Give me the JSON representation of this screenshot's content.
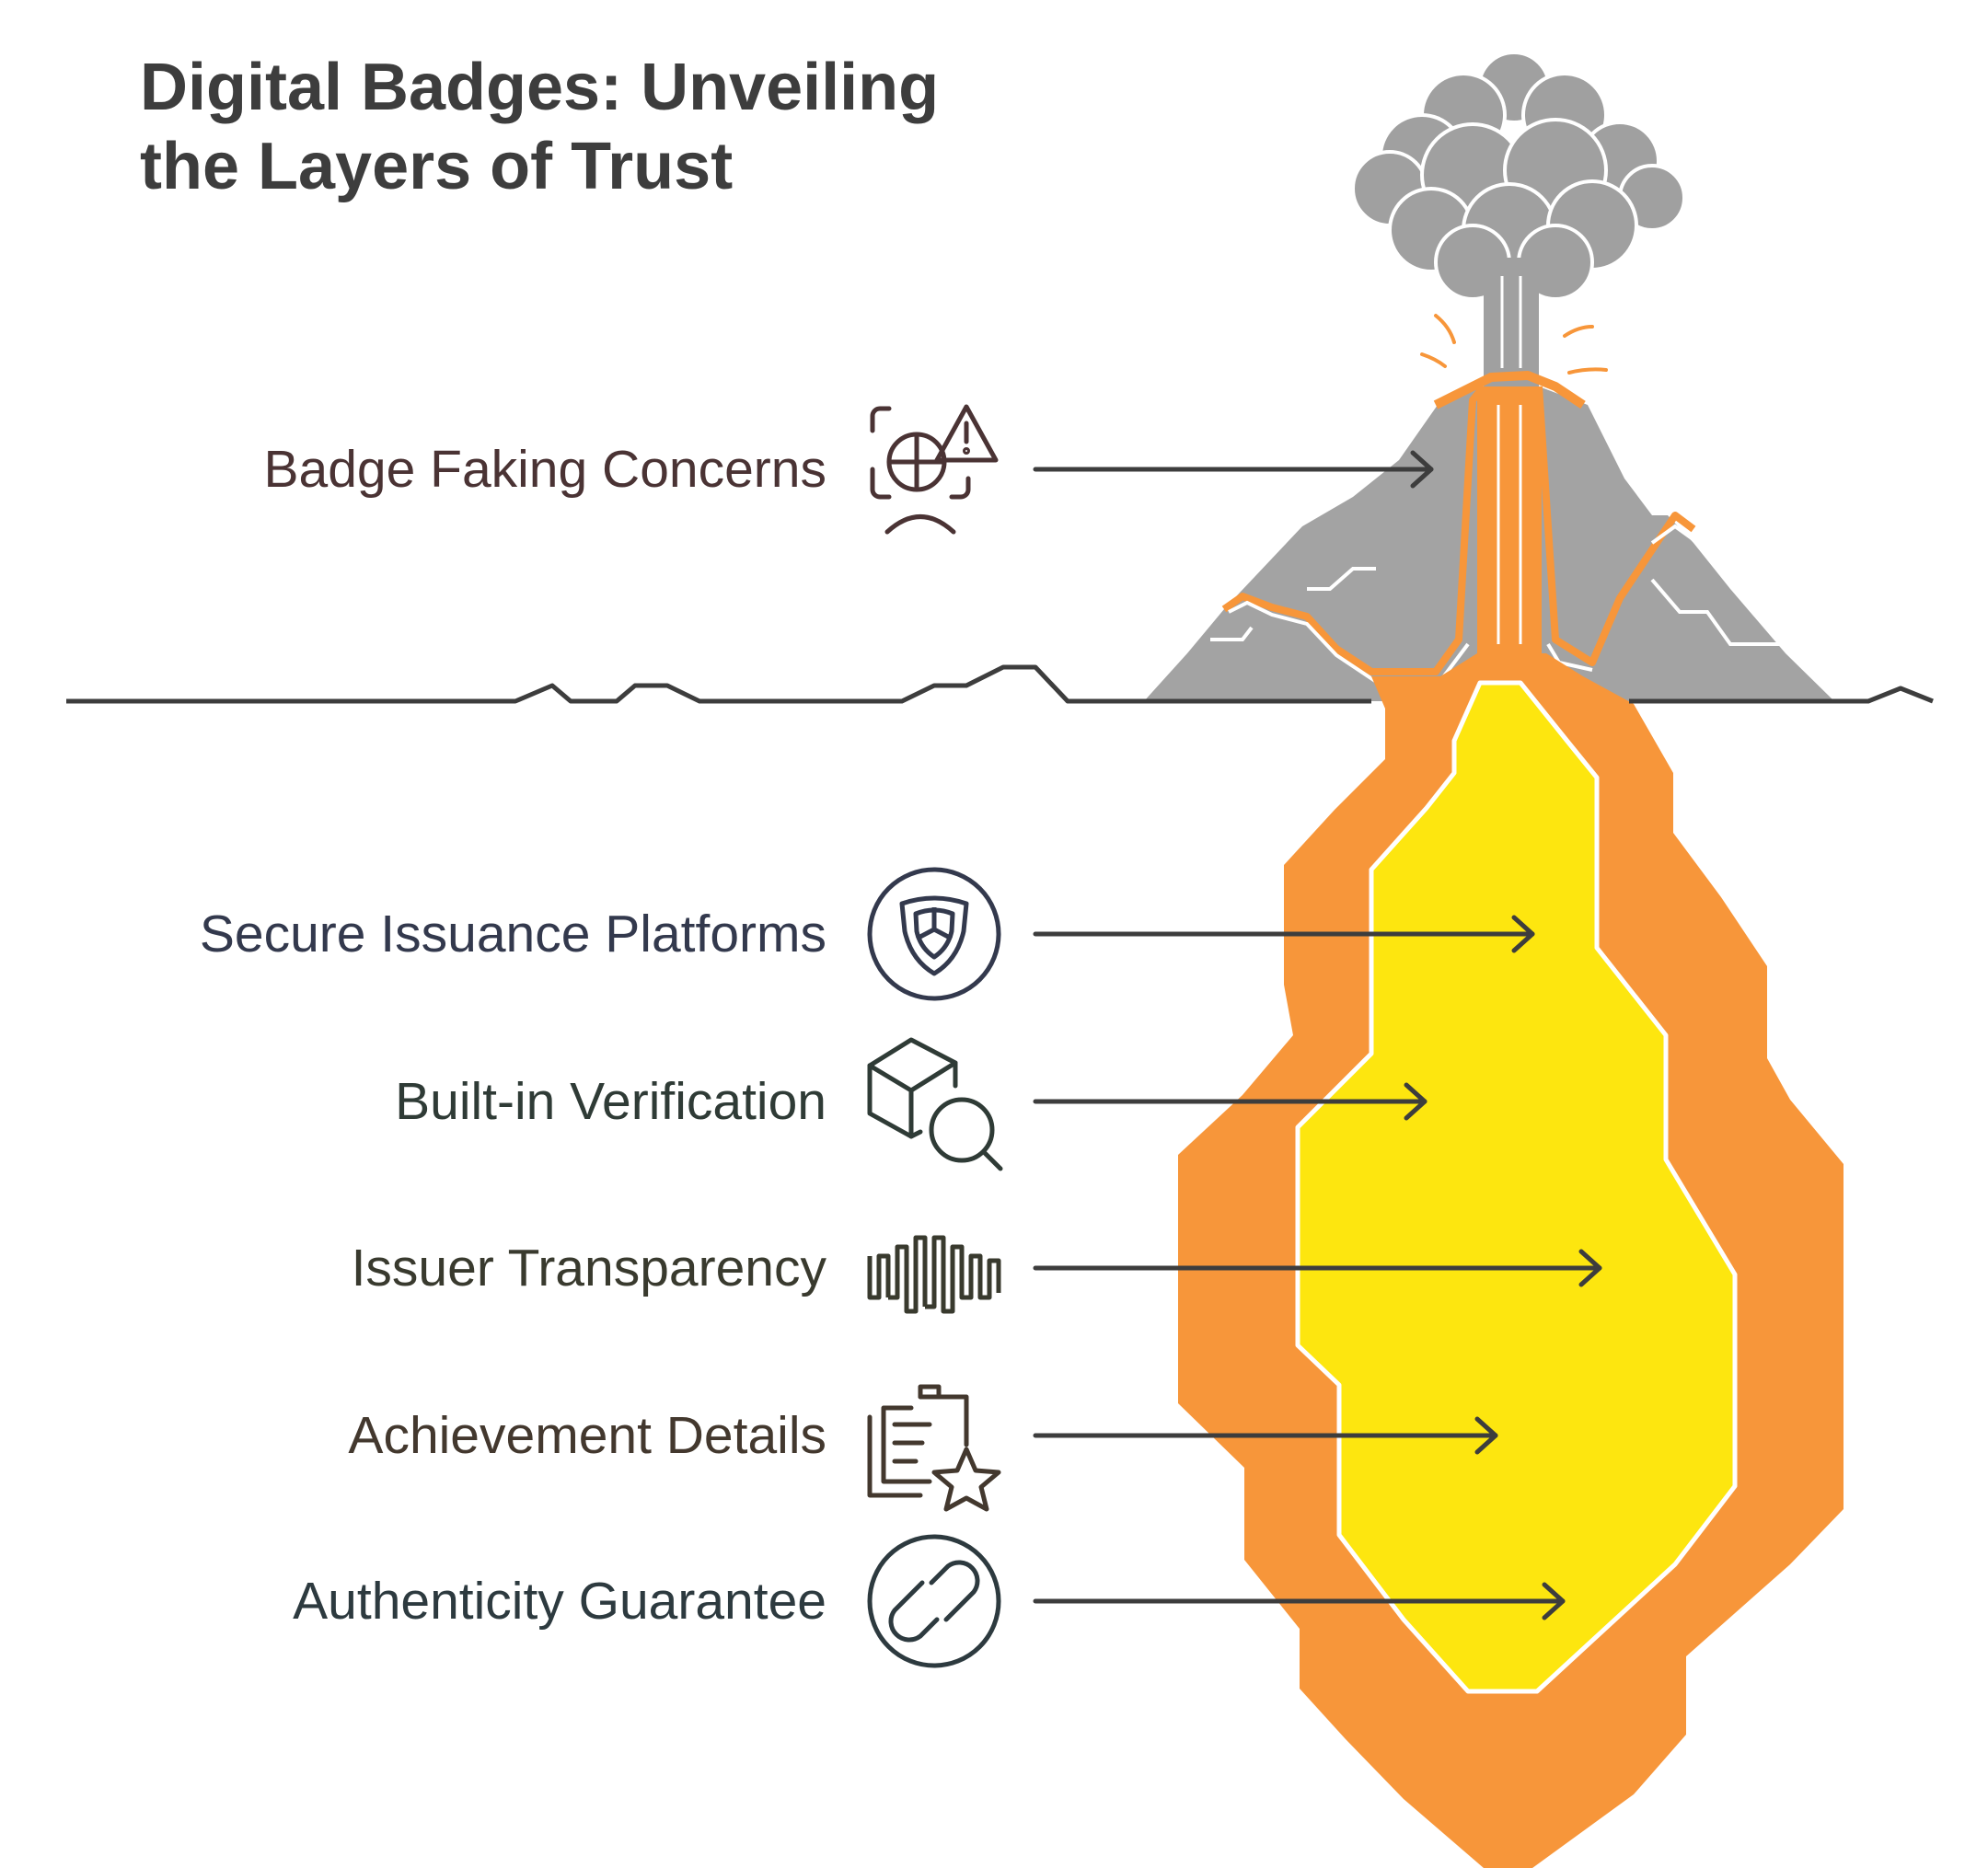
{
  "title": {
    "line1": "Digital Badges: Unveiling",
    "line2": "the Layers of Trust"
  },
  "layers": [
    {
      "label": "Badge Faking Concerns",
      "icon": "face-scan-warning-icon",
      "color": "#4a3334"
    },
    {
      "label": "Secure Issuance Platforms",
      "icon": "shield-in-circle-icon",
      "color": "#33394d"
    },
    {
      "label": "Built-in Verification",
      "icon": "box-magnifier-icon",
      "color": "#2f3b36"
    },
    {
      "label": "Issuer Transparency",
      "icon": "wave-pattern-icon",
      "color": "#393a2e"
    },
    {
      "label": "Achievement Details",
      "icon": "clipboard-star-icon",
      "color": "#43382e"
    },
    {
      "label": "Authenticity Guarantee",
      "icon": "link-in-circle-icon",
      "color": "#2d3a3f"
    }
  ],
  "colors": {
    "mountain": "#a3a3a3",
    "smoke": "#a0a0a0",
    "lava_outer": "#f7963a",
    "lava_inner": "#fde60f",
    "ground_line": "#3d3d3d",
    "arrow": "#3d3d3d"
  }
}
